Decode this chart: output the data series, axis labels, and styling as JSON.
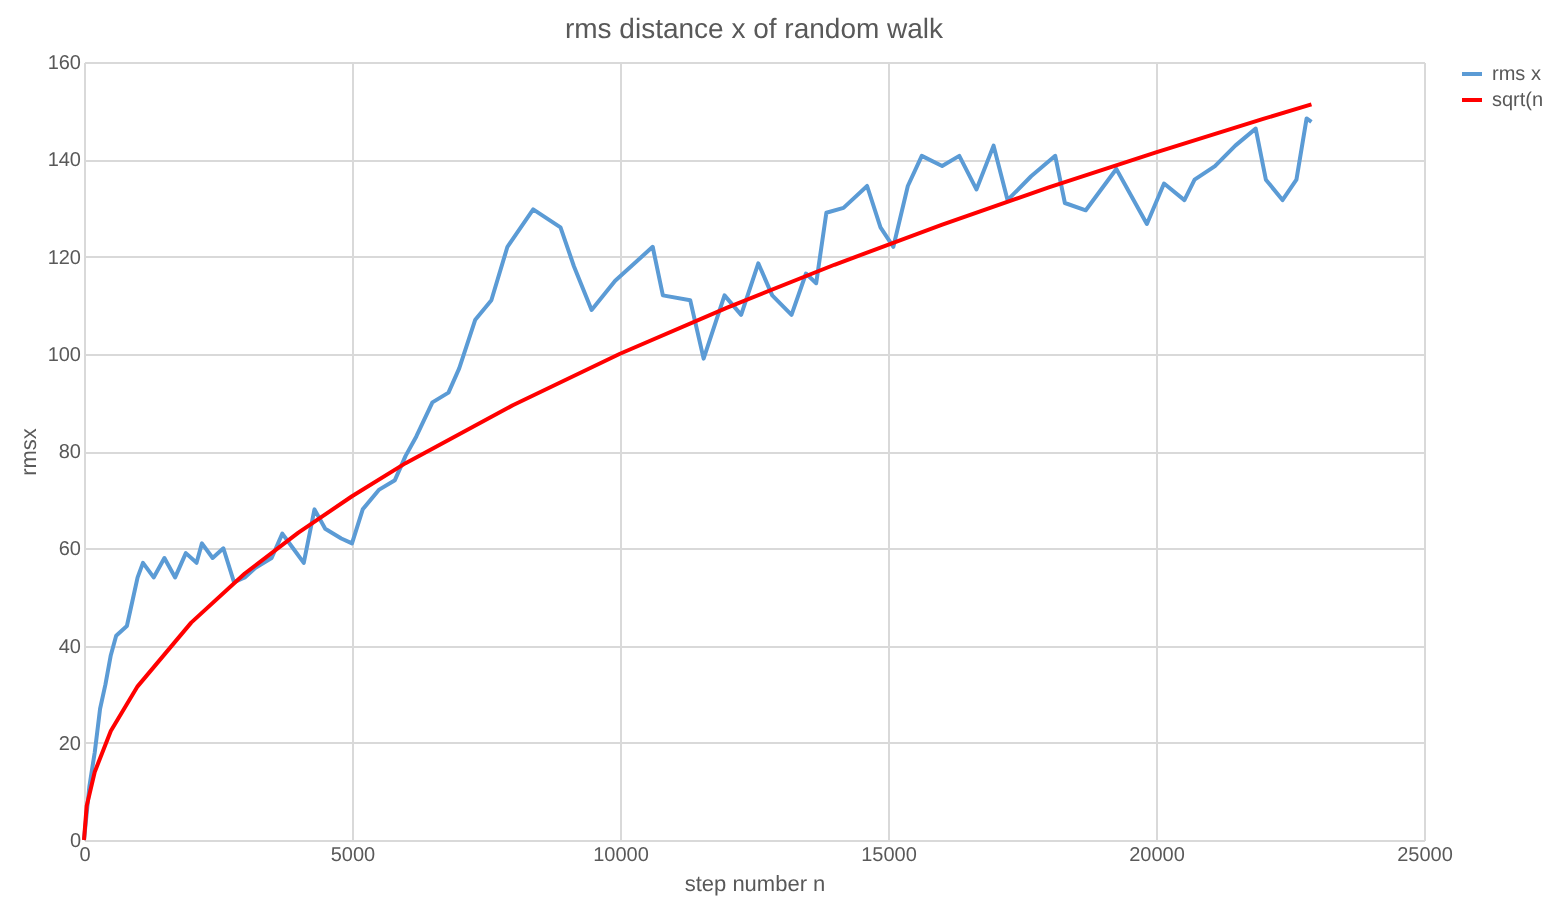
{
  "chart_data": {
    "type": "line",
    "title": "rms distance x of random walk",
    "xlabel": "step number n",
    "ylabel": "rmsx",
    "xlim": [
      0,
      25000
    ],
    "xticks": [
      0,
      5000,
      10000,
      15000,
      20000,
      25000
    ],
    "ylim": [
      0,
      160
    ],
    "yticks": [
      0,
      20,
      40,
      60,
      80,
      100,
      120,
      140,
      160
    ],
    "grid": true,
    "legend": "right",
    "series": [
      {
        "name": "rms x",
        "color": "#5b9bd5",
        "x": [
          0,
          100,
          200,
          300,
          400,
          500,
          600,
          800,
          900,
          1000,
          1100,
          1300,
          1500,
          1700,
          1900,
          2100,
          2200,
          2400,
          2600,
          2800,
          3000,
          3200,
          3500,
          3700,
          3900,
          4100,
          4300,
          4500,
          4800,
          5000,
          5200,
          5500,
          5800,
          6000,
          6200,
          6500,
          6800,
          7000,
          7300,
          7600,
          7900,
          8380,
          8890,
          9140,
          9470,
          9910,
          10610,
          10800,
          11310,
          11560,
          11950,
          12260,
          12580,
          12840,
          13200,
          13470,
          13660,
          13850,
          14170,
          14610,
          14860,
          15100,
          15370,
          15630,
          16010,
          16330,
          16650,
          16970,
          17230,
          17670,
          18120,
          18300,
          18690,
          19260,
          19830,
          20150,
          20530,
          20720,
          21100,
          21480,
          21860,
          22050,
          22360,
          22620,
          22810,
          22900
        ],
        "values": [
          0,
          11,
          18,
          27,
          32,
          38,
          42,
          44,
          49,
          54,
          57,
          54,
          58,
          54,
          59,
          57,
          61,
          58,
          60,
          53,
          54,
          56,
          58,
          63,
          60,
          57,
          68,
          64,
          62,
          61,
          68,
          72,
          74,
          79,
          83,
          90,
          92,
          97,
          107,
          111,
          122,
          129.7,
          126,
          118,
          109,
          115,
          122,
          112,
          111,
          99,
          112,
          108,
          118.6,
          112,
          108,
          116.5,
          114.5,
          129,
          130,
          134.5,
          126,
          122,
          134.5,
          140.7,
          138.6,
          140.7,
          133.8,
          142.8,
          131.6,
          136.5,
          140.7,
          131,
          129.5,
          138,
          126.7,
          135,
          131.6,
          135.8,
          138.6,
          142.8,
          146.3,
          135.8,
          131.6,
          135.8,
          148.4,
          147.7
        ]
      },
      {
        "name": "sqrt(n",
        "color": "#ff0000",
        "x": [
          0,
          50,
          200,
          500,
          1000,
          2000,
          3000,
          4000,
          5000,
          6000,
          8000,
          10000,
          12000,
          14000,
          16000,
          18000,
          20000,
          22000,
          22900
        ],
        "values": [
          0,
          7,
          14,
          22.4,
          31.6,
          44.7,
          54.8,
          63.2,
          70.7,
          77.5,
          89.4,
          100,
          109.5,
          118.3,
          126.5,
          134.2,
          141.4,
          148.3,
          151.3
        ]
      }
    ]
  }
}
